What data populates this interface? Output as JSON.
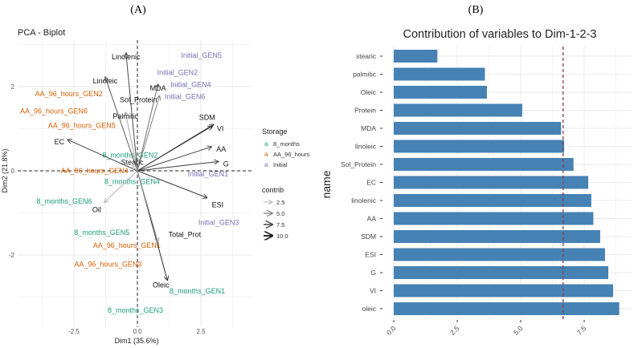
{
  "panel_labels": {
    "a": "(A)",
    "b": "(B)"
  },
  "chart_data": [
    {
      "type": "scatter",
      "title": "PCA - Biplot",
      "xlabel": "Dim1 (35.6%)",
      "ylabel": "Dim2 (21.8%)",
      "xlim": [
        -4.7,
        4.5
      ],
      "ylim": [
        -3.8,
        3.0
      ],
      "xticks": [
        -2.5,
        0.0,
        2.5
      ],
      "xtick_labels": [
        "-2.5",
        "0.0",
        "2.5"
      ],
      "yticks": [
        -2,
        0,
        2
      ],
      "ytick_labels": [
        "-2",
        "0",
        "2"
      ],
      "grid": true,
      "legend_storage": {
        "title": "Storage",
        "glyph": "a",
        "entries": [
          {
            "name": "8_months",
            "color": "#1b9e77"
          },
          {
            "name": "AA_96_hours",
            "color": "#d95f02"
          },
          {
            "name": "Initial",
            "color": "#7570b3"
          }
        ]
      },
      "legend_contrib": {
        "title": "contrib",
        "entries": [
          {
            "value": 2.5,
            "label": "2.5"
          },
          {
            "value": 5.0,
            "label": "5.0"
          },
          {
            "value": 7.5,
            "label": "7.5"
          },
          {
            "value": 10.0,
            "label": "10.0"
          }
        ]
      },
      "variables": [
        {
          "name": "Linolenic",
          "x": -0.45,
          "y": 2.8,
          "contrib": 8
        },
        {
          "name": "Linoleic",
          "x": -1.27,
          "y": 2.23,
          "contrib": 7
        },
        {
          "name": "MDA",
          "x": 0.81,
          "y": 2.06,
          "contrib": 6
        },
        {
          "name": "Sol_Protein",
          "x": 0.87,
          "y": 1.78,
          "contrib": 5
        },
        {
          "name": "Palmitic",
          "x": -0.47,
          "y": 1.39,
          "contrib": 3
        },
        {
          "name": "SDM",
          "x": 3.0,
          "y": 1.1,
          "contrib": 8.5
        },
        {
          "name": "VI",
          "x": 2.94,
          "y": 1.06,
          "contrib": 9
        },
        {
          "name": "AA",
          "x": 2.92,
          "y": 0.57,
          "contrib": 8
        },
        {
          "name": "G",
          "x": 3.19,
          "y": 0.22,
          "contrib": 8.5
        },
        {
          "name": "EC",
          "x": -2.75,
          "y": 0.74,
          "contrib": 8
        },
        {
          "name": "Stearic",
          "x": -0.2,
          "y": 0.12,
          "contrib": 2
        },
        {
          "name": "ESI",
          "x": 2.74,
          "y": -0.64,
          "contrib": 8.5
        },
        {
          "name": "Oil",
          "x": -1.3,
          "y": -0.75,
          "contrib": 2.5
        },
        {
          "name": "Oleic",
          "x": 1.18,
          "y": -2.6,
          "contrib": 9.5
        },
        {
          "name": "Total_Prot",
          "x": 0.81,
          "y": -1.69,
          "contrib": 4
        }
      ],
      "individuals": [
        {
          "name": "Initial_GEN5",
          "group": "Initial",
          "x": 2.52,
          "y": 2.74
        },
        {
          "name": "Initial_GEN2",
          "group": "Initial",
          "x": 1.58,
          "y": 2.33
        },
        {
          "name": "Initial_GEN4",
          "group": "Initial",
          "x": 2.1,
          "y": 2.05
        },
        {
          "name": "Initial_GEN6",
          "group": "Initial",
          "x": 1.87,
          "y": 1.76
        },
        {
          "name": "Initial_GEN1",
          "group": "Initial",
          "x": 2.78,
          "y": -0.08
        },
        {
          "name": "Initial_GEN3",
          "group": "Initial",
          "x": 3.2,
          "y": -1.23
        },
        {
          "name": "AA_96_hours_GEN2",
          "group": "AA_96_hours",
          "x": -2.7,
          "y": 1.83
        },
        {
          "name": "AA_96_hours_GEN6",
          "group": "AA_96_hours",
          "x": -3.29,
          "y": 1.42
        },
        {
          "name": "AA_96_hours_GEN5",
          "group": "AA_96_hours",
          "x": -2.19,
          "y": 1.08
        },
        {
          "name": "AA_96_hours_GEN4",
          "group": "AA_96_hours",
          "x": -1.69,
          "y": 0.0
        },
        {
          "name": "AA_96_hours_GEN1",
          "group": "AA_96_hours",
          "x": -0.42,
          "y": -1.77
        },
        {
          "name": "AA_96_hours_GEN3",
          "group": "AA_96_hours",
          "x": -1.16,
          "y": -2.22
        },
        {
          "name": "8_months_GEN2",
          "group": "8_months",
          "x": -0.29,
          "y": 0.37
        },
        {
          "name": "8_months_GEN4",
          "group": "8_months",
          "x": -0.21,
          "y": -0.26
        },
        {
          "name": "8_months_GEN6",
          "group": "8_months",
          "x": -2.88,
          "y": -0.72
        },
        {
          "name": "8_months_GEN5",
          "group": "8_months",
          "x": -1.4,
          "y": -1.47
        },
        {
          "name": "8_months_GEN1",
          "group": "8_months",
          "x": 2.36,
          "y": -2.86
        },
        {
          "name": "8_months_GEN3",
          "group": "8_months",
          "x": -0.08,
          "y": -3.31
        }
      ]
    },
    {
      "type": "bar",
      "orientation": "horizontal",
      "title": "Contribution of variables to Dim-1-2-3",
      "xlabel": "",
      "ylabel": "name",
      "xlim": [
        0,
        9.3
      ],
      "xticks": [
        0,
        2.5,
        5.0,
        7.5
      ],
      "xtick_labels": [
        "0.0",
        "2.5",
        "5.0",
        "7.5"
      ],
      "reference_line": 6.67,
      "bar_color": "#4682b4",
      "line_color": "#8b3a4a",
      "categories": [
        "stearic",
        "palmitic",
        "Oleic",
        "Protein",
        "MDA",
        "linoleic",
        "Sol_Protein",
        "EC",
        "linolenic",
        "AA",
        "SDM",
        "ESI",
        "G",
        "VI",
        "oleic"
      ],
      "values": [
        1.72,
        3.59,
        3.67,
        5.06,
        6.59,
        6.71,
        7.08,
        7.66,
        7.78,
        7.86,
        8.13,
        8.32,
        8.45,
        8.64,
        8.88
      ]
    }
  ]
}
